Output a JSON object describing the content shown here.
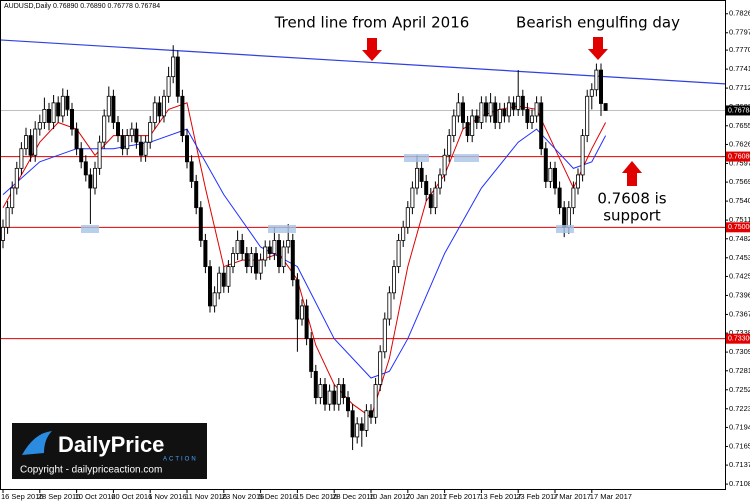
{
  "chart_data": {
    "type": "candlestick",
    "header": {
      "symbol": "AUDUSD,Daily",
      "ohlc_labels": [
        "0.76890",
        "0.76890",
        "0.76778",
        "0.76784"
      ]
    },
    "annotations": {
      "trend": "Trend line from April 2016",
      "engulfing": "Bearish engulfing day",
      "support": [
        "0.7608 is",
        "support"
      ]
    },
    "logo": {
      "daily": "Daily",
      "price": "Price",
      "action": "ACTION",
      "copyright": "Copyright - dailypriceaction.com"
    },
    "ylim": [
      0.7099,
      0.7847
    ],
    "yticks": [
      {
        "value": 0.7826,
        "label": "0.78260"
      },
      {
        "value": 0.7797,
        "label": "0.77970"
      },
      {
        "value": 0.77705,
        "label": "0.77705"
      },
      {
        "value": 0.77415,
        "label": "0.77415"
      },
      {
        "value": 0.77125,
        "label": "0.77125"
      },
      {
        "value": 0.76835,
        "label": "0.76835"
      },
      {
        "value": 0.7655,
        "label": "0.76550"
      },
      {
        "value": 0.76265,
        "label": "0.76265"
      },
      {
        "value": 0.75975,
        "label": "0.75975"
      },
      {
        "value": 0.7569,
        "label": "0.75690"
      },
      {
        "value": 0.754,
        "label": "0.75400"
      },
      {
        "value": 0.7511,
        "label": "0.75110"
      },
      {
        "value": 0.74825,
        "label": "0.74825"
      },
      {
        "value": 0.74535,
        "label": "0.74535"
      },
      {
        "value": 0.7425,
        "label": "0.74250"
      },
      {
        "value": 0.7396,
        "label": "0.73960"
      },
      {
        "value": 0.7367,
        "label": "0.73670"
      },
      {
        "value": 0.73385,
        "label": "0.73385"
      },
      {
        "value": 0.73095,
        "label": "0.73095"
      },
      {
        "value": 0.7281,
        "label": "0.72810"
      },
      {
        "value": 0.7252,
        "label": "0.72520"
      },
      {
        "value": 0.7223,
        "label": "0.72230"
      },
      {
        "value": 0.71945,
        "label": "0.71945"
      },
      {
        "value": 0.71655,
        "label": "0.71655"
      },
      {
        "value": 0.7137,
        "label": "0.71370"
      },
      {
        "value": 0.7108,
        "label": "0.71080"
      }
    ],
    "xticks": [
      {
        "value": 0,
        "label": "16 Sep 2016"
      },
      {
        "value": 8,
        "label": "28 Sep 2016"
      },
      {
        "value": 16,
        "label": "10 Oct 2016"
      },
      {
        "value": 24,
        "label": "20 Oct 2016"
      },
      {
        "value": 32,
        "label": "1 Nov 2016"
      },
      {
        "value": 40,
        "label": "11 Nov 2016"
      },
      {
        "value": 48,
        "label": "23 Nov 2016"
      },
      {
        "value": 56,
        "label": "5 Dec 2016"
      },
      {
        "value": 64,
        "label": "15 Dec 2016"
      },
      {
        "value": 72,
        "label": "28 Dec 2016"
      },
      {
        "value": 80,
        "label": "10 Jan 2017"
      },
      {
        "value": 88,
        "label": "20 Jan 2017"
      },
      {
        "value": 96,
        "label": "1 Feb 2017"
      },
      {
        "value": 104,
        "label": "13 Feb 2017"
      },
      {
        "value": 112,
        "label": "23 Feb 2017"
      },
      {
        "value": 120,
        "label": "7 Mar 2017"
      },
      {
        "value": 128,
        "label": "17 Mar 2017"
      }
    ],
    "levels": [
      {
        "value": 0.7608,
        "label": "0.76080",
        "color": "#e00000"
      },
      {
        "value": 0.75,
        "label": "0.75000",
        "color": "#e00000"
      },
      {
        "value": 0.733,
        "label": "0.73300",
        "color": "#e00000"
      }
    ],
    "current_price": {
      "value": 0.76784,
      "label": "0.76784",
      "color": "#c0c0c0"
    },
    "trend_line": {
      "values": [
        0.7786,
        0.7719
      ],
      "color": "#3040e0"
    },
    "series": [
      {
        "color": "#e00000",
        "x": [
          0,
          4,
          8,
          12,
          16,
          20,
          24,
          28,
          32,
          36,
          40,
          44,
          48,
          52,
          56,
          60,
          64,
          68,
          72,
          76,
          80,
          84,
          88,
          92,
          96,
          100,
          104,
          108,
          112,
          116,
          120,
          124,
          128,
          131
        ],
        "values": [
          0.753,
          0.758,
          0.763,
          0.766,
          0.765,
          0.761,
          0.764,
          0.764,
          0.764,
          0.768,
          0.769,
          0.756,
          0.744,
          0.745,
          0.745,
          0.746,
          0.742,
          0.732,
          0.726,
          0.723,
          0.721,
          0.73,
          0.744,
          0.754,
          0.758,
          0.765,
          0.767,
          0.768,
          0.7685,
          0.768,
          0.762,
          0.756,
          0.762,
          0.766
        ]
      },
      {
        "color": "#2030ff",
        "x": [
          0,
          8,
          16,
          24,
          32,
          40,
          48,
          56,
          64,
          72,
          80,
          84,
          88,
          96,
          104,
          112,
          116,
          120,
          124,
          128,
          131
        ],
        "values": [
          0.755,
          0.76,
          0.762,
          0.762,
          0.763,
          0.765,
          0.755,
          0.747,
          0.744,
          0.733,
          0.727,
          0.728,
          0.733,
          0.746,
          0.756,
          0.763,
          0.765,
          0.762,
          0.759,
          0.76,
          0.764
        ]
      }
    ],
    "candles": [
      [
        0.748,
        0.7512,
        0.7468,
        0.75
      ],
      [
        0.75,
        0.754,
        0.749,
        0.753
      ],
      [
        0.753,
        0.757,
        0.752,
        0.756
      ],
      [
        0.756,
        0.76,
        0.755,
        0.759
      ],
      [
        0.759,
        0.763,
        0.758,
        0.762
      ],
      [
        0.762,
        0.7652,
        0.761,
        0.764
      ],
      [
        0.764,
        0.765,
        0.76,
        0.761
      ],
      [
        0.761,
        0.7662,
        0.76,
        0.765
      ],
      [
        0.765,
        0.7672,
        0.764,
        0.766
      ],
      [
        0.766,
        0.7698,
        0.765,
        0.768
      ],
      [
        0.768,
        0.769,
        0.7648,
        0.766
      ],
      [
        0.766,
        0.7702,
        0.765,
        0.769
      ],
      [
        0.769,
        0.77,
        0.766,
        0.767
      ],
      [
        0.767,
        0.7712,
        0.766,
        0.77
      ],
      [
        0.77,
        0.771,
        0.767,
        0.768
      ],
      [
        0.768,
        0.769,
        0.764,
        0.765
      ],
      [
        0.765,
        0.766,
        0.761,
        0.762
      ],
      [
        0.762,
        0.763,
        0.759,
        0.76
      ],
      [
        0.76,
        0.761,
        0.757,
        0.758
      ],
      [
        0.758,
        0.759,
        0.7505,
        0.756
      ],
      [
        0.756,
        0.76,
        0.755,
        0.759
      ],
      [
        0.759,
        0.764,
        0.758,
        0.763
      ],
      [
        0.763,
        0.768,
        0.762,
        0.767
      ],
      [
        0.767,
        0.7715,
        0.766,
        0.77
      ],
      [
        0.77,
        0.771,
        0.765,
        0.766
      ],
      [
        0.766,
        0.767,
        0.763,
        0.764
      ],
      [
        0.764,
        0.765,
        0.761,
        0.762
      ],
      [
        0.762,
        0.765,
        0.761,
        0.764
      ],
      [
        0.764,
        0.766,
        0.763,
        0.765
      ],
      [
        0.765,
        0.766,
        0.762,
        0.763
      ],
      [
        0.763,
        0.764,
        0.76,
        0.761
      ],
      [
        0.761,
        0.764,
        0.76,
        0.763
      ],
      [
        0.763,
        0.767,
        0.762,
        0.766
      ],
      [
        0.766,
        0.77,
        0.765,
        0.769
      ],
      [
        0.769,
        0.77,
        0.766,
        0.767
      ],
      [
        0.767,
        0.771,
        0.766,
        0.77
      ],
      [
        0.77,
        0.7745,
        0.769,
        0.773
      ],
      [
        0.773,
        0.7778,
        0.772,
        0.776
      ],
      [
        0.776,
        0.777,
        0.769,
        0.77
      ],
      [
        0.77,
        0.771,
        0.763,
        0.764
      ],
      [
        0.764,
        0.765,
        0.759,
        0.76
      ],
      [
        0.76,
        0.761,
        0.756,
        0.757
      ],
      [
        0.757,
        0.758,
        0.752,
        0.753
      ],
      [
        0.753,
        0.754,
        0.747,
        0.748
      ],
      [
        0.748,
        0.749,
        0.743,
        0.744
      ],
      [
        0.744,
        0.745,
        0.737,
        0.738
      ],
      [
        0.738,
        0.741,
        0.737,
        0.74
      ],
      [
        0.74,
        0.744,
        0.739,
        0.743
      ],
      [
        0.743,
        0.744,
        0.74,
        0.741
      ],
      [
        0.741,
        0.745,
        0.74,
        0.744
      ],
      [
        0.744,
        0.747,
        0.743,
        0.746
      ],
      [
        0.746,
        0.7495,
        0.745,
        0.748
      ],
      [
        0.748,
        0.749,
        0.745,
        0.746
      ],
      [
        0.746,
        0.747,
        0.743,
        0.744
      ],
      [
        0.744,
        0.747,
        0.743,
        0.746
      ],
      [
        0.746,
        0.747,
        0.742,
        0.743
      ],
      [
        0.743,
        0.746,
        0.742,
        0.745
      ],
      [
        0.745,
        0.748,
        0.744,
        0.747
      ],
      [
        0.747,
        0.748,
        0.745,
        0.746
      ],
      [
        0.746,
        0.75,
        0.745,
        0.748
      ],
      [
        0.748,
        0.749,
        0.743,
        0.744
      ],
      [
        0.744,
        0.748,
        0.743,
        0.747
      ],
      [
        0.747,
        0.7505,
        0.746,
        0.748
      ],
      [
        0.748,
        0.749,
        0.741,
        0.742
      ],
      [
        0.742,
        0.743,
        0.731,
        0.736
      ],
      [
        0.736,
        0.739,
        0.735,
        0.738
      ],
      [
        0.738,
        0.739,
        0.732,
        0.733
      ],
      [
        0.733,
        0.734,
        0.727,
        0.728
      ],
      [
        0.728,
        0.729,
        0.723,
        0.724
      ],
      [
        0.724,
        0.727,
        0.723,
        0.726
      ],
      [
        0.726,
        0.727,
        0.722,
        0.723
      ],
      [
        0.723,
        0.726,
        0.722,
        0.725
      ],
      [
        0.725,
        0.726,
        0.722,
        0.723
      ],
      [
        0.723,
        0.727,
        0.722,
        0.726
      ],
      [
        0.726,
        0.727,
        0.723,
        0.724
      ],
      [
        0.724,
        0.725,
        0.721,
        0.722
      ],
      [
        0.722,
        0.723,
        0.716,
        0.718
      ],
      [
        0.718,
        0.721,
        0.717,
        0.72
      ],
      [
        0.72,
        0.721,
        0.7165,
        0.719
      ],
      [
        0.719,
        0.723,
        0.718,
        0.722
      ],
      [
        0.722,
        0.723,
        0.72,
        0.721
      ],
      [
        0.721,
        0.727,
        0.72,
        0.726
      ],
      [
        0.726,
        0.732,
        0.725,
        0.731
      ],
      [
        0.731,
        0.737,
        0.73,
        0.736
      ],
      [
        0.736,
        0.741,
        0.735,
        0.74
      ],
      [
        0.74,
        0.745,
        0.739,
        0.744
      ],
      [
        0.744,
        0.749,
        0.743,
        0.748
      ],
      [
        0.748,
        0.751,
        0.747,
        0.75
      ],
      [
        0.75,
        0.754,
        0.749,
        0.753
      ],
      [
        0.753,
        0.757,
        0.752,
        0.756
      ],
      [
        0.756,
        0.761,
        0.755,
        0.759
      ],
      [
        0.759,
        0.76,
        0.756,
        0.757
      ],
      [
        0.757,
        0.758,
        0.754,
        0.755
      ],
      [
        0.755,
        0.756,
        0.752,
        0.753
      ],
      [
        0.753,
        0.757,
        0.752,
        0.756
      ],
      [
        0.756,
        0.759,
        0.755,
        0.758
      ],
      [
        0.758,
        0.762,
        0.757,
        0.761
      ],
      [
        0.761,
        0.765,
        0.76,
        0.764
      ],
      [
        0.764,
        0.768,
        0.763,
        0.767
      ],
      [
        0.767,
        0.7705,
        0.766,
        0.769
      ],
      [
        0.769,
        0.77,
        0.765,
        0.766
      ],
      [
        0.766,
        0.767,
        0.763,
        0.764
      ],
      [
        0.764,
        0.768,
        0.763,
        0.767
      ],
      [
        0.767,
        0.768,
        0.765,
        0.766
      ],
      [
        0.766,
        0.77,
        0.765,
        0.769
      ],
      [
        0.769,
        0.77,
        0.766,
        0.767
      ],
      [
        0.767,
        0.7705,
        0.766,
        0.769
      ],
      [
        0.769,
        0.77,
        0.765,
        0.766
      ],
      [
        0.766,
        0.769,
        0.765,
        0.768
      ],
      [
        0.768,
        0.769,
        0.766,
        0.767
      ],
      [
        0.767,
        0.77,
        0.766,
        0.769
      ],
      [
        0.769,
        0.77,
        0.767,
        0.768
      ],
      [
        0.768,
        0.774,
        0.767,
        0.77
      ],
      [
        0.77,
        0.771,
        0.767,
        0.768
      ],
      [
        0.768,
        0.769,
        0.765,
        0.766
      ],
      [
        0.766,
        0.768,
        0.765,
        0.767
      ],
      [
        0.767,
        0.77,
        0.766,
        0.769
      ],
      [
        0.769,
        0.77,
        0.761,
        0.762
      ],
      [
        0.762,
        0.763,
        0.756,
        0.757
      ],
      [
        0.757,
        0.76,
        0.756,
        0.759
      ],
      [
        0.759,
        0.76,
        0.755,
        0.756
      ],
      [
        0.756,
        0.757,
        0.752,
        0.753
      ],
      [
        0.753,
        0.754,
        0.7485,
        0.75
      ],
      [
        0.75,
        0.754,
        0.749,
        0.753
      ],
      [
        0.753,
        0.757,
        0.752,
        0.756
      ],
      [
        0.756,
        0.759,
        0.755,
        0.758
      ],
      [
        0.758,
        0.765,
        0.757,
        0.764
      ],
      [
        0.764,
        0.771,
        0.763,
        0.77
      ],
      [
        0.77,
        0.772,
        0.768,
        0.771
      ],
      [
        0.771,
        0.775,
        0.77,
        0.774
      ],
      [
        0.774,
        0.775,
        0.767,
        0.7689
      ],
      [
        0.7689,
        0.7689,
        0.76778,
        0.76784
      ]
    ]
  }
}
